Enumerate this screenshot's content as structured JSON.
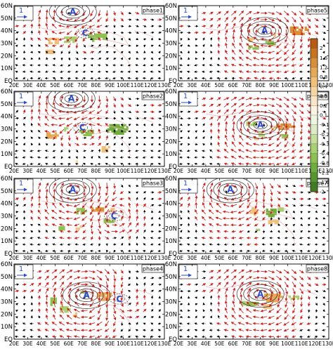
{
  "chart_data": {
    "type": "heatmap",
    "x_ticks": [
      "20E",
      "30E",
      "40E",
      "50E",
      "60E",
      "70E",
      "80E",
      "90E",
      "100E",
      "110E",
      "120E",
      "130E"
    ],
    "y_ticks": [
      "EQ",
      "10N",
      "20N",
      "30N",
      "40N",
      "50N",
      "60N"
    ],
    "xlim": [
      20,
      130
    ],
    "ylim": [
      0,
      60
    ],
    "reference_vector_label": "1",
    "colorbar": {
      "labels": [
        "2",
        "1.6",
        "1.2",
        "0.8",
        "0.4",
        "0.3",
        "0.2",
        "0.1",
        "-0.1",
        "-0.2",
        "-0.3",
        "-0.4",
        "-0.8",
        "-1.2",
        "-1.6",
        "-2"
      ],
      "colors": [
        "#b85a10",
        "#c8741c",
        "#d98f34",
        "#e6a852",
        "#f0c078",
        "#f6d6a0",
        "#fae6c6",
        "#fdf3e2",
        "#eef5e0",
        "#dcebc4",
        "#c4df9c",
        "#a8d070",
        "#8cc150",
        "#6fae3a",
        "#54962c",
        "#3f7c22"
      ]
    },
    "panels": [
      {
        "name": "phase1",
        "labels": {
          "A": [
            63,
            55
          ],
          "C": [
            72,
            38
          ]
        },
        "anomaly": [
          {
            "x": 80,
            "y": 36,
            "w": 15,
            "h": 7,
            "v": -1.0
          },
          {
            "x": 60,
            "y": 34,
            "w": 10,
            "h": 6,
            "v": -0.6
          },
          {
            "x": 48,
            "y": 33,
            "w": 9,
            "h": 6,
            "v": 0.6
          },
          {
            "x": 45,
            "y": 24,
            "w": 7,
            "h": 5,
            "v": 0.4
          },
          {
            "x": 57,
            "y": 5,
            "w": 3,
            "h": 3,
            "v": -0.8
          }
        ]
      },
      {
        "name": "phase2",
        "labels": {
          "A": [
            62,
            54
          ],
          "C": [
            70,
            31
          ]
        },
        "anomaly": [
          {
            "x": 95,
            "y": 31,
            "w": 17,
            "h": 9,
            "v": -1.2
          },
          {
            "x": 72,
            "y": 28,
            "w": 12,
            "h": 6,
            "v": -0.8
          },
          {
            "x": 47,
            "y": 26,
            "w": 10,
            "h": 6,
            "v": 0.8
          },
          {
            "x": 57,
            "y": 31,
            "w": 4,
            "h": 4,
            "v": -0.5
          },
          {
            "x": 86,
            "y": 15,
            "w": 7,
            "h": 6,
            "v": 0.4
          },
          {
            "x": 66,
            "y": 5,
            "w": 5,
            "h": 3,
            "v": 0.3
          }
        ]
      },
      {
        "name": "phase3",
        "labels": {
          "A": [
            63,
            51
          ],
          "C": [
            93,
            30
          ]
        },
        "anomaly": [
          {
            "x": 80,
            "y": 36,
            "w": 10,
            "h": 5,
            "v": 1.2
          },
          {
            "x": 90,
            "y": 36,
            "w": 5,
            "h": 4,
            "v": 0.6
          },
          {
            "x": 68,
            "y": 35,
            "w": 8,
            "h": 6,
            "v": -0.7
          },
          {
            "x": 88,
            "y": 27,
            "w": 8,
            "h": 5,
            "v": -0.8
          },
          {
            "x": 54,
            "y": 21,
            "w": 6,
            "h": 5,
            "v": -0.8
          },
          {
            "x": 66,
            "y": 22,
            "w": 5,
            "h": 4,
            "v": 0.4
          }
        ]
      },
      {
        "name": "phase4",
        "labels": {
          "A": [
            73,
            35
          ],
          "C": [
            97,
            32
          ]
        },
        "anomaly": [
          {
            "x": 85,
            "y": 35,
            "w": 12,
            "h": 8,
            "v": 0.8
          },
          {
            "x": 70,
            "y": 38,
            "w": 6,
            "h": 4,
            "v": -0.8
          },
          {
            "x": 48,
            "y": 31,
            "w": 6,
            "h": 8,
            "v": -1.0
          },
          {
            "x": 56,
            "y": 25,
            "w": 8,
            "h": 6,
            "v": -0.6
          },
          {
            "x": 64,
            "y": 21,
            "w": 5,
            "h": 4,
            "v": 0.5
          },
          {
            "x": 54,
            "y": 30,
            "w": 3,
            "h": 4,
            "v": 0.4
          }
        ]
      },
      {
        "name": "phase5",
        "labels": {
          "A": [
            83,
            40
          ]
        },
        "anomaly": [
          {
            "x": 107,
            "y": 41,
            "w": 14,
            "h": 8,
            "v": 1.4
          },
          {
            "x": 88,
            "y": 38,
            "w": 6,
            "h": 4,
            "v": 0.6
          },
          {
            "x": 86,
            "y": 31,
            "w": 8,
            "h": 5,
            "v": -1.0
          },
          {
            "x": 74,
            "y": 28,
            "w": 9,
            "h": 4,
            "v": -0.7
          },
          {
            "x": 72,
            "y": 34,
            "w": 5,
            "h": 4,
            "v": 0.4
          }
        ]
      },
      {
        "name": "phase6",
        "labels": {
          "A": [
            80,
            33
          ]
        },
        "anomaly": [
          {
            "x": 97,
            "y": 33,
            "w": 14,
            "h": 6,
            "v": 1.4
          },
          {
            "x": 72,
            "y": 35,
            "w": 8,
            "h": 5,
            "v": -0.6
          },
          {
            "x": 89,
            "y": 32,
            "w": 5,
            "h": 4,
            "v": 0.8
          },
          {
            "x": 80,
            "y": 27,
            "w": 6,
            "h": 4,
            "v": -0.5
          },
          {
            "x": 96,
            "y": 25,
            "w": 7,
            "h": 5,
            "v": -0.8
          },
          {
            "x": 76,
            "y": 23,
            "w": 4,
            "h": 3,
            "v": 0.4
          }
        ]
      },
      {
        "name": "phase7",
        "labels": {
          "A": [
            58,
            51
          ]
        },
        "anomaly": [
          {
            "x": 87,
            "y": 34,
            "w": 9,
            "h": 7,
            "v": -1.4
          },
          {
            "x": 74,
            "y": 35,
            "w": 7,
            "h": 7,
            "v": 0.6
          },
          {
            "x": 94,
            "y": 36,
            "w": 6,
            "h": 5,
            "v": -0.5
          },
          {
            "x": 88,
            "y": 26,
            "w": 8,
            "h": 5,
            "v": 0.6
          },
          {
            "x": 77,
            "y": 20,
            "w": 4,
            "h": 3,
            "v": -0.4
          }
        ]
      },
      {
        "name": "phase8",
        "labels": {
          "A": [
            80,
            36
          ]
        },
        "anomaly": [
          {
            "x": 88,
            "y": 34,
            "w": 14,
            "h": 8,
            "v": 0.8
          },
          {
            "x": 103,
            "y": 34,
            "w": 8,
            "h": 5,
            "v": -0.6
          },
          {
            "x": 73,
            "y": 29,
            "w": 10,
            "h": 5,
            "v": -0.7
          },
          {
            "x": 84,
            "y": 27,
            "w": 7,
            "h": 5,
            "v": 0.6
          },
          {
            "x": 66,
            "y": 30,
            "w": 6,
            "h": 4,
            "v": -0.4
          }
        ]
      }
    ],
    "panel_order": [
      "phase1",
      "phase5",
      "phase2",
      "phase6",
      "phase3",
      "phase7",
      "phase4",
      "phase8"
    ]
  }
}
